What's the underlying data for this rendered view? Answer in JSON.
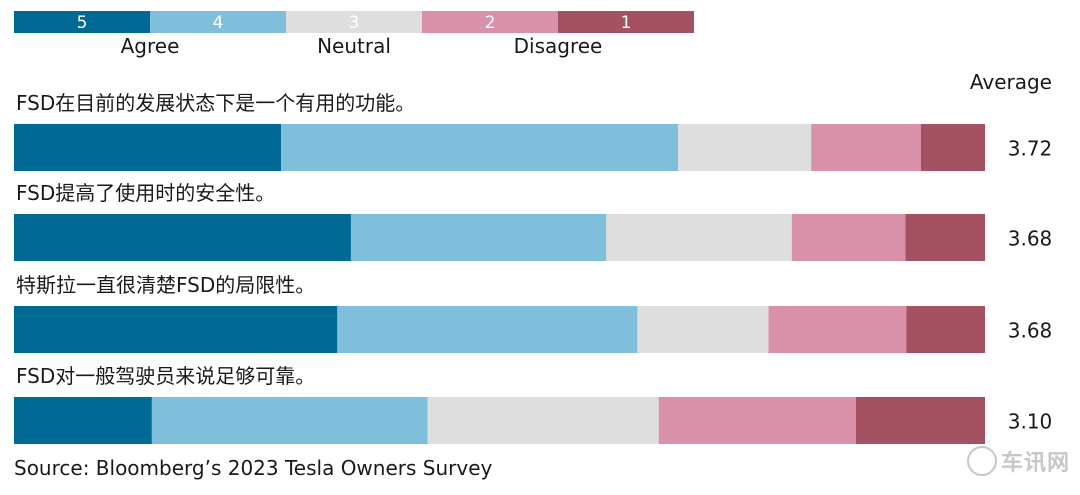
{
  "chart_data": {
    "type": "bar",
    "stacked": true,
    "orientation": "horizontal",
    "scale_levels": [
      {
        "value": "5",
        "color": "#006994"
      },
      {
        "value": "4",
        "color": "#7fbfdc"
      },
      {
        "value": "3",
        "color": "#dedede"
      },
      {
        "value": "2",
        "color": "#d991aa"
      },
      {
        "value": "1",
        "color": "#a45262"
      }
    ],
    "scale_labels": [
      "Agree",
      "Neutral",
      "Disagree"
    ],
    "average_header": "Average",
    "categories": [
      "FSD在目前的发展状态下是一个有用的功能。",
      "FSD提高了使用时的安全性。",
      "特斯拉一直很清楚FSD的局限性。",
      "FSD对一般驾驶员来说足够可靠。"
    ],
    "averages": [
      "3.72",
      "3.68",
      "3.68",
      "3.10"
    ],
    "series": [
      {
        "name": "5",
        "values": [
          27.5,
          34.7,
          33.3,
          14.2
        ]
      },
      {
        "name": "4",
        "values": [
          40.9,
          26.3,
          30.9,
          28.4
        ]
      },
      {
        "name": "3",
        "values": [
          13.7,
          19.1,
          13.5,
          23.8
        ]
      },
      {
        "name": "2",
        "values": [
          11.3,
          11.7,
          14.2,
          20.3
        ]
      },
      {
        "name": "1",
        "values": [
          6.6,
          8.2,
          8.1,
          13.3
        ]
      }
    ],
    "xlim": [
      0,
      100
    ]
  },
  "source": "Source: Bloomberg’s 2023 Tesla Owners Survey",
  "watermark": "车讯网"
}
